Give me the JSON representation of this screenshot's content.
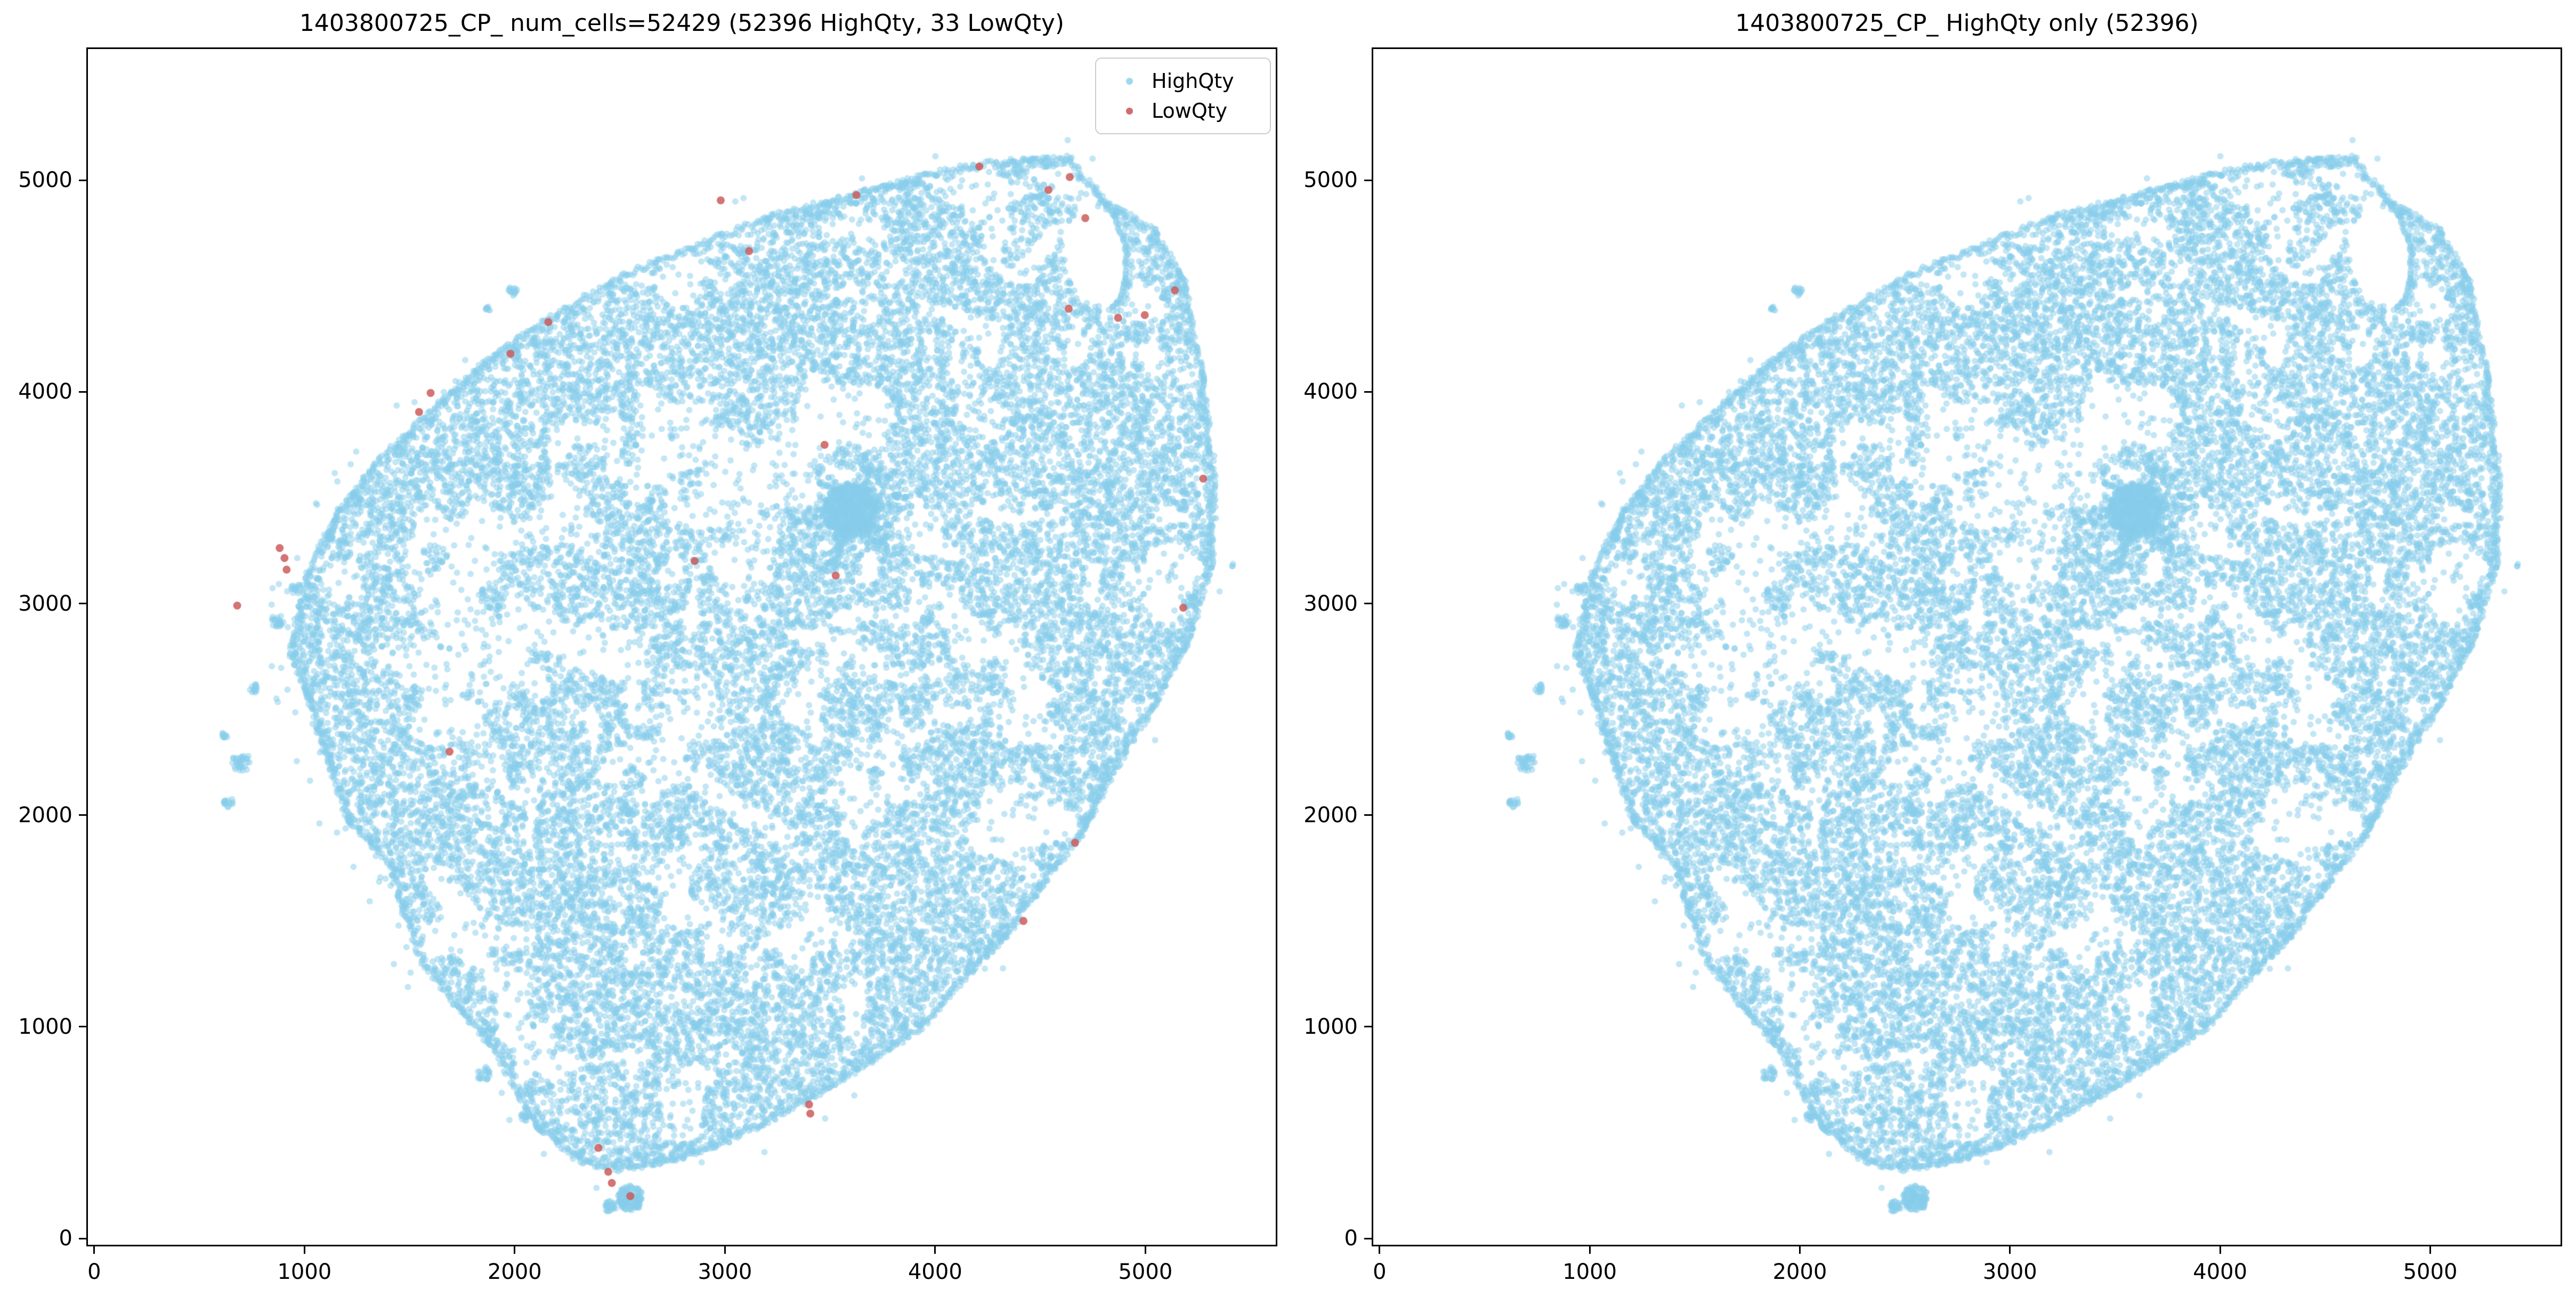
{
  "chart_data": {
    "type": "scatter",
    "plots": [
      {
        "title": "1403800725_CP_ num_cells=52429 (52396 HighQty, 33 LowQty)",
        "show_lowqty": true,
        "show_legend": true
      },
      {
        "title": "1403800725_CP_ HighQty only (52396)",
        "show_lowqty": false,
        "show_legend": false
      }
    ],
    "series": [
      {
        "name": "HighQty",
        "count": 52396,
        "color": "#87CEEB",
        "alpha": 0.5
      },
      {
        "name": "LowQty",
        "count": 33,
        "color": "#CD5C5C",
        "alpha": 0.85
      }
    ],
    "xlim": [
      -30,
      5620
    ],
    "ylim": [
      -30,
      5620
    ],
    "x_tick_values": [
      0,
      1000,
      2000,
      3000,
      4000,
      5000
    ],
    "x_tick_labels": [
      "0",
      "1000",
      "2000",
      "3000",
      "4000",
      "5000"
    ],
    "y_tick_values": [
      0,
      1000,
      2000,
      3000,
      4000,
      5000
    ],
    "y_tick_labels": [
      "0",
      "1000",
      "2000",
      "3000",
      "4000",
      "5000"
    ],
    "grid": false,
    "legend_position": "upper right",
    "tissue_outline": [
      [
        2690,
        353
      ],
      [
        2480,
        320
      ],
      [
        2300,
        365
      ],
      [
        2100,
        525
      ],
      [
        1960,
        780
      ],
      [
        1905,
        885
      ],
      [
        1750,
        1060
      ],
      [
        1553,
        1310
      ],
      [
        1460,
        1560
      ],
      [
        1396,
        1776
      ],
      [
        1205,
        1970
      ],
      [
        1085,
        2320
      ],
      [
        1010,
        2560
      ],
      [
        930,
        2750
      ],
      [
        962,
        2950
      ],
      [
        1005,
        3135
      ],
      [
        1160,
        3445
      ],
      [
        1350,
        3680
      ],
      [
        1592,
        3912
      ],
      [
        1850,
        4140
      ],
      [
        2141,
        4340
      ],
      [
        2520,
        4560
      ],
      [
        2847,
        4690
      ],
      [
        3200,
        4830
      ],
      [
        3631,
        4946
      ],
      [
        4000,
        5040
      ],
      [
        4180,
        5078
      ],
      [
        4450,
        5105
      ],
      [
        4640,
        5110
      ],
      [
        4700,
        5035
      ],
      [
        4810,
        4905
      ],
      [
        5045,
        4767
      ],
      [
        5185,
        4534
      ],
      [
        5278,
        4068
      ],
      [
        5333,
        3602
      ],
      [
        5318,
        3174
      ],
      [
        5200,
        2800
      ],
      [
        5045,
        2514
      ],
      [
        4850,
        2200
      ],
      [
        4690,
        1892
      ],
      [
        4500,
        1650
      ],
      [
        4340,
        1426
      ],
      [
        4100,
        1180
      ],
      [
        3945,
        1000
      ],
      [
        3700,
        830
      ],
      [
        3400,
        650
      ],
      [
        3150,
        520
      ],
      [
        3005,
        455
      ],
      [
        2850,
        392
      ]
    ],
    "lagoon": [
      [
        4610,
        4770
      ],
      [
        4760,
        4930
      ],
      [
        4870,
        4800
      ],
      [
        4915,
        4640
      ],
      [
        4895,
        4470
      ],
      [
        4820,
        4395
      ],
      [
        4700,
        4430
      ],
      [
        4620,
        4560
      ]
    ],
    "lagoon_chain": [
      [
        4755,
        4950
      ],
      [
        4850,
        4830
      ],
      [
        4905,
        4690
      ],
      [
        4908,
        4540
      ],
      [
        4880,
        4440
      ],
      [
        4830,
        4390
      ]
    ],
    "dense_core": {
      "center": [
        3600,
        3440
      ],
      "blob_radius": 130,
      "arm_length": 290,
      "arm_width": 34,
      "arm_angles_deg": [
        10,
        70,
        130,
        190,
        250,
        310
      ],
      "points": 850
    },
    "islands": [
      [
        2550,
        190,
        60,
        130
      ],
      [
        2455,
        150,
        28,
        25
      ],
      [
        700,
        2250,
        45,
        35
      ],
      [
        640,
        2060,
        25,
        15
      ],
      [
        870,
        2920,
        32,
        22
      ],
      [
        960,
        3070,
        26,
        15
      ],
      [
        1990,
        4475,
        22,
        14
      ],
      [
        1870,
        4390,
        14,
        8
      ],
      [
        1850,
        780,
        35,
        22
      ],
      [
        2050,
        580,
        25,
        14
      ],
      [
        5420,
        3180,
        8,
        3
      ],
      [
        1120,
        3320,
        20,
        12
      ],
      [
        760,
        2600,
        22,
        14
      ],
      [
        620,
        2380,
        18,
        10
      ]
    ],
    "coast_stragglers": {
      "count": 160,
      "max_offset": 130
    },
    "lowqty_points": [
      [
        905,
        3215
      ],
      [
        915,
        3160
      ],
      [
        882,
        3262
      ],
      [
        1600,
        3995
      ],
      [
        1545,
        3905
      ],
      [
        3115,
        4665
      ],
      [
        4640,
        5015
      ],
      [
        4539,
        4954
      ],
      [
        4714,
        4821
      ],
      [
        4635,
        4393
      ],
      [
        4997,
        4363
      ],
      [
        5140,
        4480
      ],
      [
        4870,
        4350
      ],
      [
        3474,
        3750
      ],
      [
        2856,
        3201
      ],
      [
        3527,
        3132
      ],
      [
        2445,
        315
      ],
      [
        2462,
        262
      ],
      [
        2398,
        428
      ],
      [
        3400,
        633
      ],
      [
        3406,
        590
      ],
      [
        680,
        2990
      ],
      [
        4665,
        1870
      ],
      [
        1690,
        2300
      ],
      [
        2550,
        200
      ],
      [
        2160,
        4330
      ],
      [
        1980,
        4180
      ],
      [
        2980,
        4905
      ],
      [
        3625,
        4930
      ],
      [
        4210,
        5065
      ],
      [
        5275,
        3590
      ],
      [
        5180,
        2980
      ],
      [
        4420,
        1500
      ]
    ],
    "render": {
      "seed": 42,
      "fill_points": 25000,
      "noise_threshold": 0.4,
      "dot_radius_px": 6,
      "lowqty_radius_px": 7.5
    }
  }
}
